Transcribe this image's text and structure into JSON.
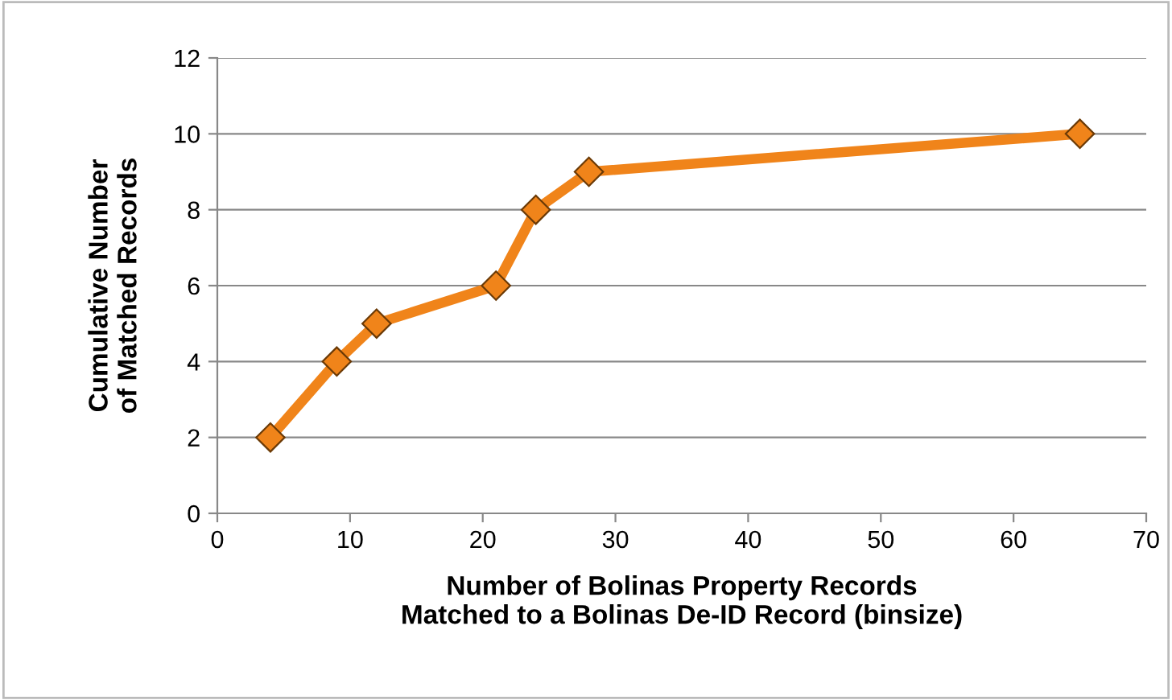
{
  "chart_data": {
    "type": "line",
    "xlabel": "Number of Bolinas Property Records\nMatched to a Bolinas De-ID Record (binsize)",
    "ylabel": "Cumulative Number\nof Matched Records",
    "series": [
      {
        "color": "#f0841a",
        "x": [
          4,
          9,
          12,
          21,
          24,
          28,
          65
        ],
        "values": [
          2,
          4,
          5,
          6,
          8,
          9,
          10
        ]
      }
    ],
    "xlim": [
      0,
      70
    ],
    "xticks": [
      0,
      10,
      20,
      30,
      40,
      50,
      60,
      70
    ],
    "ylim": [
      0,
      12
    ],
    "yticks": [
      0,
      2,
      4,
      6,
      8,
      10,
      12
    ],
    "grid": "y",
    "marker": "diamond",
    "line_style": "solid"
  }
}
